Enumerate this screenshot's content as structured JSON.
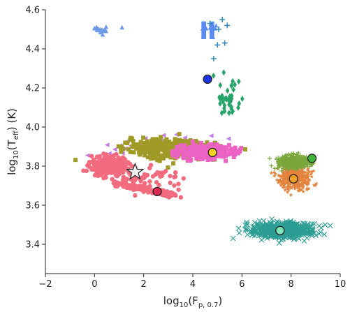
{
  "chart_data": {
    "type": "scatter",
    "title": "",
    "xlabel": {
      "base": "log",
      "sub": "10",
      "main": "(F",
      "sub2": "p, 0.7",
      "end": ")"
    },
    "ylabel": {
      "base": "log",
      "sub": "10",
      "main": "(T",
      "sub2": "eff",
      "end": ") (K)"
    },
    "xlim": [
      -2,
      10
    ],
    "ylim": [
      3.25,
      4.6
    ],
    "xticks": [
      -2,
      0,
      2,
      4,
      6,
      8,
      10
    ],
    "yticks": [
      3.4,
      3.6,
      3.8,
      4.0,
      4.2,
      4.4,
      4.6
    ],
    "xtick_labels": [
      "−2",
      "0",
      "2",
      "4",
      "6",
      "8",
      "10"
    ],
    "ytick_labels": [
      "3.4",
      "3.6",
      "3.8",
      "4.0",
      "4.2",
      "4.4",
      "4.6"
    ],
    "grid": false,
    "legend": "none",
    "series": [
      {
        "marker": "triangle-up",
        "color": "#6f9ae8",
        "cx": 0.3,
        "cy": 4.505,
        "sx": 0.35,
        "sy": 0.025,
        "n": 18
      },
      {
        "marker": "band",
        "color": "#5b8cf0",
        "x_range": [
          4.35,
          4.95
        ],
        "y_range": [
          4.45,
          4.54
        ]
      },
      {
        "marker": "plus",
        "color": "#3a8bbf",
        "points": [
          [
            4.7,
            4.53
          ],
          [
            5.2,
            4.55
          ],
          [
            5.4,
            4.52
          ],
          [
            5.0,
            4.42
          ],
          [
            5.3,
            4.43
          ],
          [
            4.85,
            4.35
          ],
          [
            5.05,
            4.5
          ]
        ]
      },
      {
        "marker": "diamond",
        "color": "#26a368",
        "cx": 5.4,
        "cy": 4.14,
        "sx": 0.45,
        "sy": 0.07,
        "n": 40
      },
      {
        "marker": "triangle-left",
        "color": "#c879e8",
        "cx": 2.2,
        "cy": 3.9,
        "sx": 2.2,
        "sy": 0.05,
        "n": 45
      },
      {
        "marker": "square",
        "color": "#a09a27",
        "cx": 3.2,
        "cy": 3.89,
        "sx": 1.55,
        "sy": 0.04,
        "n": 380
      },
      {
        "marker": "square",
        "color": "#ec63c3",
        "cx": 4.5,
        "cy": 3.875,
        "sx": 0.9,
        "sy": 0.03,
        "n": 320
      },
      {
        "marker": "circle",
        "color": "#f26b7e",
        "cx": 0.6,
        "cy": 3.8,
        "sx": 0.6,
        "sy": 0.035,
        "n": 420
      },
      {
        "marker": "circle-trail",
        "color": "#f26b7e",
        "from": [
          1.0,
          3.71
        ],
        "to": [
          3.2,
          3.65
        ],
        "n": 200
      },
      {
        "marker": "circle",
        "color": "#f26b7e",
        "cx": 2.3,
        "cy": 3.74,
        "sx": 1.3,
        "sy": 0.05,
        "n": 60
      },
      {
        "marker": "star-small",
        "color": "#e3833d",
        "cx": 8.15,
        "cy": 3.74,
        "sx": 0.5,
        "sy": 0.05,
        "n": 380
      },
      {
        "marker": "plus-small",
        "color": "#7aa63a",
        "cx": 8.1,
        "cy": 3.82,
        "sx": 0.55,
        "sy": 0.028,
        "n": 400
      },
      {
        "marker": "x",
        "color": "#2c9d94",
        "cx": 7.6,
        "cy": 3.47,
        "sx": 1.1,
        "sy": 0.035,
        "n": 520
      }
    ],
    "highlights": [
      {
        "marker": "circle",
        "x": 4.6,
        "y": 4.245,
        "fill": "#1c33e6"
      },
      {
        "marker": "circle",
        "x": 4.8,
        "y": 3.87,
        "fill": "#f2d11c"
      },
      {
        "marker": "circle",
        "x": 2.55,
        "y": 3.67,
        "fill": "#d82a50"
      },
      {
        "marker": "circle",
        "x": 8.85,
        "y": 3.84,
        "fill": "#3eb33a"
      },
      {
        "marker": "circle",
        "x": 8.1,
        "y": 3.735,
        "fill": "#f0a223"
      },
      {
        "marker": "circle",
        "x": 7.55,
        "y": 3.47,
        "fill": "#7fe5b9"
      },
      {
        "marker": "star",
        "x": 1.65,
        "y": 3.77,
        "fill": "#f3f3f3"
      }
    ]
  }
}
